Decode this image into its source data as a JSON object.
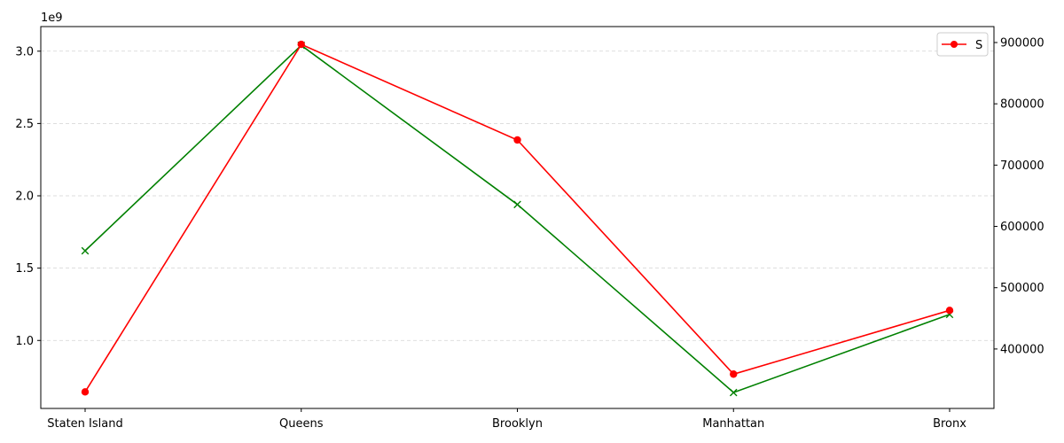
{
  "chart_data": {
    "type": "line",
    "title": "",
    "xlabel": "",
    "categories": [
      "Staten Island",
      "Queens",
      "Brooklyn",
      "Manhattan",
      "Bronx"
    ],
    "left_axis": {
      "offset_label": "1e9",
      "scale": 1000000000,
      "ylim": [
        0.53,
        3.17
      ],
      "ticks": [
        1.0,
        1.5,
        2.0,
        2.5,
        3.0
      ],
      "tick_labels": [
        "1.0",
        "1.5",
        "2.0",
        "2.5",
        "3.0"
      ],
      "grid": true
    },
    "right_axis": {
      "ylim": [
        303000,
        926000
      ],
      "ticks": [
        400000,
        500000,
        600000,
        700000,
        800000,
        900000
      ],
      "tick_labels": [
        "400000",
        "500000",
        "600000",
        "700000",
        "800000",
        "900000"
      ]
    },
    "series": [
      {
        "axis": "left",
        "color": "#008000",
        "marker": "x",
        "values": [
          1620000000,
          3040000000,
          1940000000,
          640000000,
          1180000000
        ]
      },
      {
        "name": "S",
        "axis": "right",
        "color": "#ff0000",
        "marker": "o",
        "values": [
          330000,
          897000,
          741000,
          359000,
          463000
        ]
      }
    ],
    "legend": {
      "placement": "top-right",
      "entries": [
        "S"
      ]
    }
  }
}
